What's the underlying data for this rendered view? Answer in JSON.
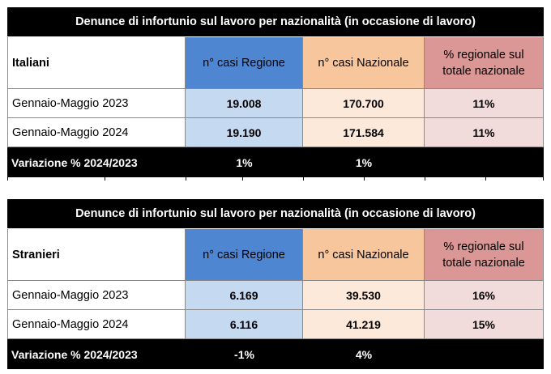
{
  "tables": [
    {
      "title": "Denunce di infortunio sul lavoro per nazionalità (in occasione di lavoro)",
      "group": "Italiani",
      "col_regione": "n° casi Regione",
      "col_nazionale": "n° casi Nazionale",
      "col_percent": "% regionale sul totale nazionale",
      "rows": [
        {
          "period": "Gennaio-Maggio 2023",
          "regione": "19.008",
          "nazionale": "170.700",
          "percent": "11%"
        },
        {
          "period": "Gennaio-Maggio 2024",
          "regione": "19.190",
          "nazionale": "171.584",
          "percent": "11%"
        }
      ],
      "variation": {
        "label": "Variazione % 2024/2023",
        "regione": "1%",
        "nazionale": "1%"
      }
    },
    {
      "title": "Denunce di infortunio sul lavoro per nazionalità (in occasione di lavoro)",
      "group": "Stranieri",
      "col_regione": "n° casi Regione",
      "col_nazionale": "n° casi Nazionale",
      "col_percent": "% regionale sul totale nazionale",
      "rows": [
        {
          "period": "Gennaio-Maggio 2023",
          "regione": "6.169",
          "nazionale": "39.530",
          "percent": "16%"
        },
        {
          "period": "Gennaio-Maggio 2024",
          "regione": "6.116",
          "nazionale": "41.219",
          "percent": "15%"
        }
      ],
      "variation": {
        "label": "Variazione % 2024/2023",
        "regione": "-1%",
        "nazionale": "4%"
      }
    }
  ]
}
